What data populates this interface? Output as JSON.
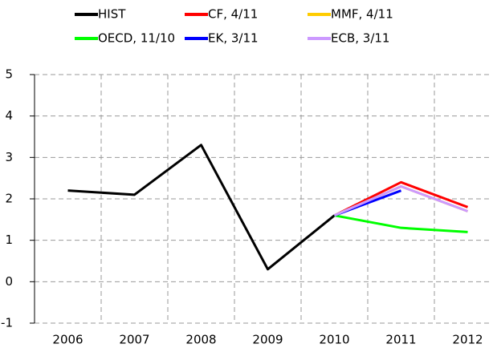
{
  "chart_data": {
    "type": "line",
    "categories": [
      "2006",
      "2007",
      "2008",
      "2009",
      "2010",
      "2011",
      "2012"
    ],
    "series": [
      {
        "name": "HIST",
        "color": "#000000",
        "values": [
          2.2,
          2.1,
          3.3,
          0.3,
          1.6,
          null,
          null
        ]
      },
      {
        "name": "CF, 4/11",
        "color": "#ff0000",
        "values": [
          null,
          null,
          null,
          null,
          1.6,
          2.4,
          1.8
        ]
      },
      {
        "name": "MMF, 4/11",
        "color": "#ffcc00",
        "values": [
          null,
          null,
          null,
          null,
          1.6,
          2.3,
          1.7
        ]
      },
      {
        "name": "OECD, 11/10",
        "color": "#00ff00",
        "values": [
          null,
          null,
          null,
          null,
          1.6,
          1.3,
          1.2
        ]
      },
      {
        "name": "EK, 3/11",
        "color": "#0000ff",
        "values": [
          null,
          null,
          null,
          null,
          1.6,
          2.2,
          null
        ]
      },
      {
        "name": "ECB, 3/11",
        "color": "#cc99ff",
        "values": [
          null,
          null,
          null,
          null,
          1.6,
          2.3,
          1.7
        ]
      }
    ],
    "ylim": [
      -1,
      5
    ],
    "yticks": [
      -1,
      0,
      1,
      2,
      3,
      4,
      5
    ],
    "grid": true
  }
}
